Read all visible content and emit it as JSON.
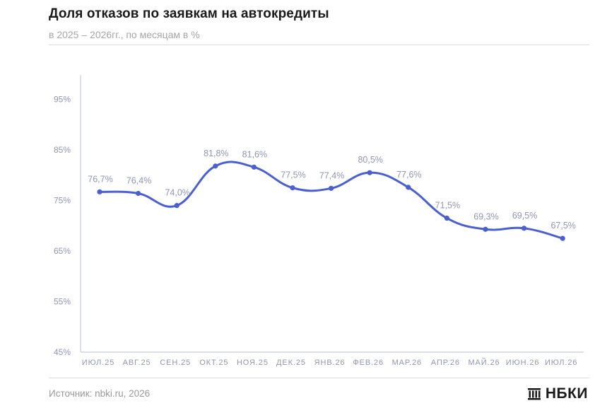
{
  "header": {
    "title": "Доля отказов по заявкам на автокредиты",
    "subtitle": "в 2025 – 2026гг., по месяцам в %"
  },
  "footer": {
    "source": "Источник: nbki.ru, 2026",
    "logo_text": "НБКИ",
    "logo_icon": "nbki-building-icon"
  },
  "colors": {
    "line": "#4a5fd0",
    "axis": "#c6cbe6",
    "tick_text": "#8f96b2"
  },
  "chart_data": {
    "type": "line",
    "title": "Доля отказов по заявкам на автокредиты",
    "subtitle": "в 2025 – 2026гг., по месяцам в %",
    "categories": [
      "ИЮЛ.25",
      "АВГ.25",
      "СЕН.25",
      "ОКТ.25",
      "НОЯ.25",
      "ДЕК.25",
      "ЯНВ.26",
      "ФЕВ.26",
      "МАР.26",
      "АПР.26",
      "МАЙ.26",
      "ИЮН.26",
      "ИЮЛ.26"
    ],
    "values": [
      76.7,
      76.4,
      74.0,
      81.8,
      81.6,
      77.5,
      77.4,
      80.5,
      77.6,
      71.5,
      69.3,
      69.5,
      67.5
    ],
    "labels": [
      "76,7%",
      "76,4%",
      "74,0%",
      "81,8%",
      "81,6%",
      "77,5%",
      "77,4%",
      "80,5%",
      "77,6%",
      "71,5%",
      "69,3%",
      "69,5%",
      "67,5%"
    ],
    "yticks": [
      45,
      55,
      65,
      75,
      85,
      95
    ],
    "ytick_labels": [
      "45%",
      "55%",
      "65%",
      "75%",
      "85%",
      "95%"
    ],
    "ylim": [
      45,
      100
    ],
    "xlabel": "",
    "ylabel": "",
    "grid": false,
    "smooth": true
  }
}
